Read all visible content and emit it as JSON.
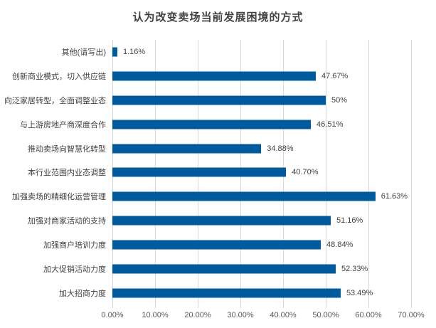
{
  "chart_data": {
    "type": "bar",
    "orientation": "horizontal",
    "title": "认为改变卖场当前发展困境的方式",
    "categories": [
      "其他(请写出)",
      "创新商业模式，切入供应链",
      "向泛家居转型，全面调整业态",
      "与上游房地产商深度合作",
      "推动卖场向智慧化转型",
      "本行业范围内业态调整",
      "加强卖场的精细化运营管理",
      "加强对商家活动的支持",
      "加强商户培训力度",
      "加大促销活动力度",
      "加大招商力度"
    ],
    "values": [
      1.16,
      47.67,
      50,
      46.51,
      34.88,
      40.7,
      61.63,
      51.16,
      48.84,
      52.33,
      53.49
    ],
    "value_labels": [
      "1.16%",
      "47.67%",
      "50%",
      "46.51%",
      "34.88%",
      "40.70%",
      "61.63%",
      "51.16%",
      "48.84%",
      "52.33%",
      "53.49%"
    ],
    "xlim": [
      0,
      70
    ],
    "x_tick_labels": [
      "0.00%",
      "10.00%",
      "20.00%",
      "30.00%",
      "40.00%",
      "50.00%",
      "60.00%",
      "70.00%"
    ],
    "x_tick_values": [
      0,
      10,
      20,
      30,
      40,
      50,
      60,
      70
    ],
    "grid": true,
    "legend": false,
    "bar_color": "#005B9E",
    "grid_color": "#D9D9D9",
    "label_color": "#404040",
    "axis_label_color": "#595959",
    "title_color": "#424242"
  }
}
